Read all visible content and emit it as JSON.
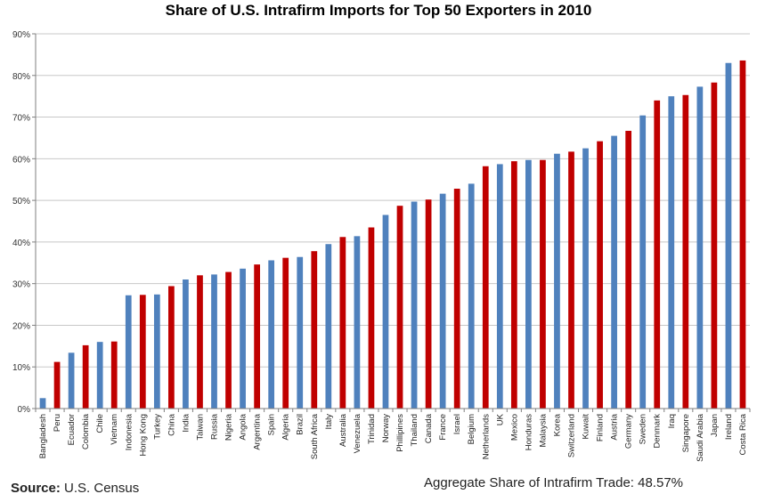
{
  "chart_data": {
    "type": "bar",
    "title": "Share of U.S. Intrafirm Imports for Top 50 Exporters in 2010",
    "xlabel": "",
    "ylabel": "",
    "ylim": [
      0,
      90
    ],
    "yticks": [
      "0%",
      "10%",
      "20%",
      "30%",
      "40%",
      "50%",
      "60%",
      "70%",
      "80%",
      "90%"
    ],
    "grid": true,
    "legend": "none",
    "colors": {
      "blue": "#4f81bd",
      "red": "#c00000"
    },
    "categories": [
      "Bangladesh",
      "Peru",
      "Ecuador",
      "Colombia",
      "Chile",
      "Vietnam",
      "Indonesia",
      "Hong Kong",
      "Turkey",
      "China",
      "India",
      "Taiwan",
      "Russia",
      "Nigeria",
      "Angola",
      "Argentina",
      "Spain",
      "Algeria",
      "Brazil",
      "South Africa",
      "Italy",
      "Australia",
      "Venezuela",
      "Trinidad",
      "Norway",
      "Phillipines",
      "Thailand",
      "Canada",
      "France",
      "Israel",
      "Belgium",
      "Netherlands",
      "UK",
      "Mexico",
      "Honduras",
      "Malaysia",
      "Korea",
      "Switzerland",
      "Kuwait",
      "Finland",
      "Austria",
      "Germany",
      "Sweden",
      "Denmark",
      "Iraq",
      "Singapore",
      "Saudi Arabia",
      "Japan",
      "Ireland",
      "Costa Rica"
    ],
    "values": [
      2.5,
      11.2,
      13.4,
      15.2,
      16.0,
      16.1,
      27.2,
      27.3,
      27.4,
      29.4,
      31.0,
      32.0,
      32.2,
      32.8,
      33.6,
      34.6,
      35.6,
      36.2,
      36.4,
      37.8,
      39.5,
      41.2,
      41.4,
      43.5,
      46.5,
      48.7,
      49.7,
      50.2,
      51.6,
      52.8,
      54.0,
      58.2,
      58.7,
      59.4,
      59.7,
      59.7,
      61.2,
      61.7,
      62.5,
      64.2,
      65.5,
      66.7,
      70.4,
      74.0,
      75.0,
      75.3,
      77.3,
      78.3,
      83.0,
      83.6
    ],
    "bar_colors": [
      "blue",
      "red",
      "blue",
      "red",
      "blue",
      "red",
      "blue",
      "red",
      "blue",
      "red",
      "blue",
      "red",
      "blue",
      "red",
      "blue",
      "red",
      "blue",
      "red",
      "blue",
      "red",
      "blue",
      "red",
      "blue",
      "red",
      "blue",
      "red",
      "blue",
      "red",
      "blue",
      "red",
      "blue",
      "red",
      "blue",
      "red",
      "blue",
      "red",
      "blue",
      "red",
      "blue",
      "red",
      "blue",
      "red",
      "blue",
      "red",
      "blue",
      "red",
      "blue",
      "red",
      "blue",
      "red"
    ]
  },
  "footer": {
    "source_label": "Source:",
    "source_value": "U.S. Census",
    "aggregate": "Aggregate Share of Intrafirm Trade: 48.57%"
  }
}
